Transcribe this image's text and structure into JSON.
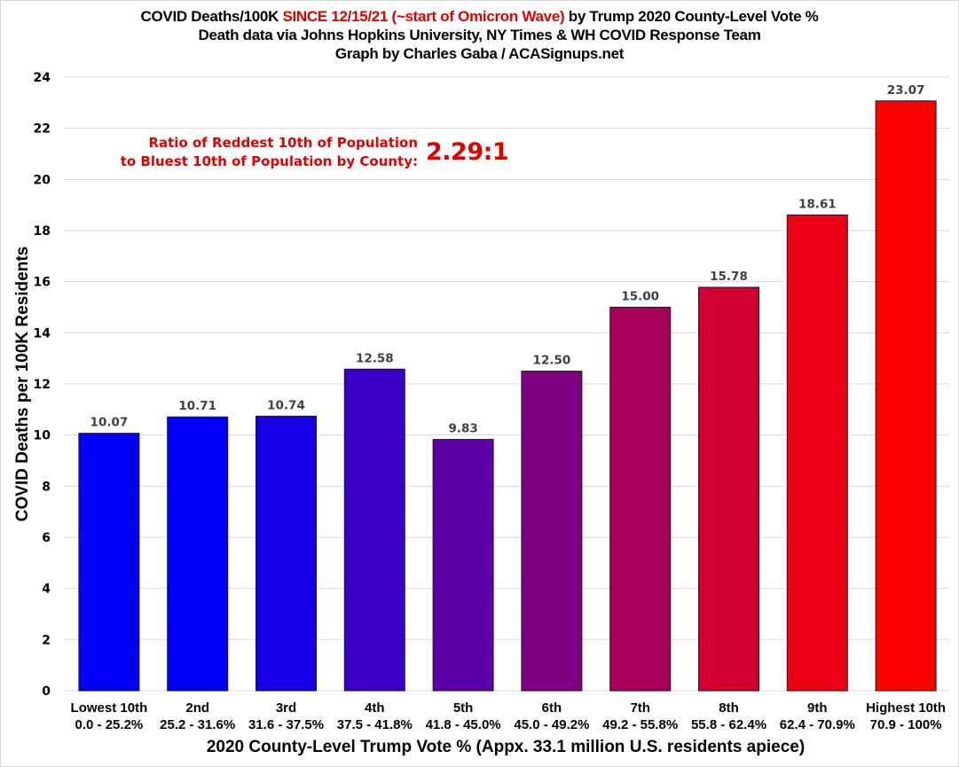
{
  "chart_data": {
    "type": "bar",
    "title": {
      "line1_prefix": "COVID Deaths/100K ",
      "line1_highlight": "SINCE 12/15/21 (~start of Omicron Wave)",
      "line1_suffix": " by Trump 2020 County-Level Vote %",
      "line2": "Death data via Johns Hopkins University, NY Times & WH COVID Response Team",
      "line3": "Graph by Charles Gaba / ACASignups.net"
    },
    "annotation": {
      "line1": "Ratio of Reddest 10th of Population",
      "line2": "to Bluest 10th of Population by County:",
      "ratio": "2.29:1"
    },
    "xlabel": "2020 County-Level Trump Vote % (Appx. 33.1 million U.S. residents apiece)",
    "ylabel": "COVID Deaths per 100K Residents",
    "ylim": [
      0,
      24
    ],
    "yticks": [
      0,
      2,
      4,
      6,
      8,
      10,
      12,
      14,
      16,
      18,
      20,
      22,
      24
    ],
    "grid": true,
    "legend": "none",
    "categories": [
      "Lowest 10th",
      "2nd",
      "3rd",
      "4th",
      "5th",
      "6th",
      "7th",
      "8th",
      "9th",
      "Highest 10th"
    ],
    "category_ranges": [
      "0.0 - 25.2%",
      "25.2 - 31.6%",
      "31.6 - 37.5%",
      "37.5 - 41.8%",
      "41.8 - 45.0%",
      "45.0 - 49.2%",
      "49.2 - 55.8%",
      "55.8 - 62.4%",
      "62.4 - 70.9%",
      "70.9 - 100%"
    ],
    "values": [
      10.07,
      10.71,
      10.74,
      12.58,
      9.83,
      12.5,
      15.0,
      15.78,
      18.61,
      23.07
    ],
    "data_labels": [
      "10.07",
      "10.71",
      "10.74",
      "12.58",
      "9.83",
      "12.50",
      "15.00",
      "15.78",
      "18.61",
      "23.07"
    ],
    "bar_colors": [
      "#0000ff",
      "#0000fa",
      "#1400e6",
      "#3a00c8",
      "#5a00a6",
      "#7d0080",
      "#a8005a",
      "#d00030",
      "#ee0014",
      "#ff0000"
    ]
  }
}
